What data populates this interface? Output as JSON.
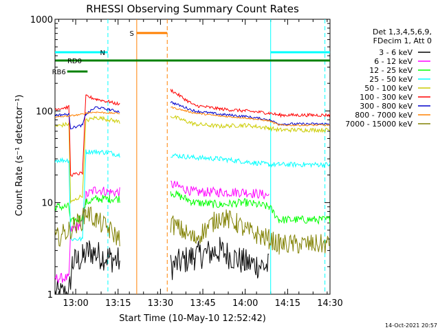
{
  "chart_data": {
    "type": "line",
    "title": "RHESSI Observing Summary Count Rates",
    "xlabel": "Start Time (10-May-10 12:52:42)",
    "ylabel": "Count Rate (s⁻¹ detector⁻¹)",
    "yscale": "log",
    "xlim": [
      12.878,
      14.5
    ],
    "ylim": [
      1,
      1000
    ],
    "x_ticks": [
      {
        "value": 13.0,
        "label": "13:00"
      },
      {
        "value": 13.25,
        "label": "13:15"
      },
      {
        "value": 13.5,
        "label": "13:30"
      },
      {
        "value": 13.75,
        "label": "13:45"
      },
      {
        "value": 14.0,
        "label": "14:00"
      },
      {
        "value": 14.25,
        "label": "14:15"
      },
      {
        "value": 14.5,
        "label": "14:30"
      }
    ],
    "y_ticks": [
      {
        "value": 1,
        "label": "1"
      },
      {
        "value": 10,
        "label": "10"
      },
      {
        "value": 100,
        "label": "100"
      },
      {
        "value": 1000,
        "label": "1000"
      }
    ],
    "legend": {
      "position": "right",
      "header": [
        "Det 1,3,4,5,6,9,",
        "FDecim 1, Att 0"
      ]
    },
    "series": [
      {
        "name": "3 - 6 keV",
        "color": "#000000",
        "noise": 0.35,
        "points": [
          [
            12.878,
            1
          ],
          [
            12.96,
            1
          ],
          [
            12.98,
            2.2
          ],
          [
            13.04,
            2.5
          ],
          [
            13.08,
            3
          ],
          [
            13.13,
            2.7
          ],
          [
            13.2,
            2.5
          ],
          [
            13.26,
            2.3
          ],
          [
            13.32,
            null
          ],
          [
            13.55,
            null
          ],
          [
            13.56,
            2.0
          ],
          [
            13.7,
            2.6
          ],
          [
            13.85,
            3.0
          ],
          [
            14.0,
            2.2
          ],
          [
            14.14,
            2.0
          ],
          [
            14.2,
            null
          ],
          [
            14.5,
            null
          ]
        ]
      },
      {
        "name": "6 - 12 keV",
        "color": "#ff00ff",
        "noise": 0.12,
        "points": [
          [
            12.878,
            1.5
          ],
          [
            12.96,
            1.5
          ],
          [
            12.97,
            5
          ],
          [
            13.04,
            6
          ],
          [
            13.06,
            12
          ],
          [
            13.12,
            14
          ],
          [
            13.2,
            13
          ],
          [
            13.26,
            13
          ],
          [
            13.32,
            null
          ],
          [
            13.55,
            null
          ],
          [
            13.56,
            16
          ],
          [
            13.7,
            13
          ],
          [
            13.85,
            13
          ],
          [
            14.0,
            13
          ],
          [
            14.14,
            12
          ],
          [
            14.2,
            null
          ],
          [
            14.5,
            null
          ]
        ]
      },
      {
        "name": "12 - 25 keV",
        "color": "#00ff00",
        "noise": 0.1,
        "points": [
          [
            12.878,
            9
          ],
          [
            12.96,
            9
          ],
          [
            12.97,
            6
          ],
          [
            13.04,
            7
          ],
          [
            13.06,
            10
          ],
          [
            13.12,
            11
          ],
          [
            13.2,
            11
          ],
          [
            13.26,
            11
          ],
          [
            13.32,
            null
          ],
          [
            13.55,
            null
          ],
          [
            13.56,
            13
          ],
          [
            13.7,
            10
          ],
          [
            13.85,
            9.5
          ],
          [
            14.0,
            10
          ],
          [
            14.14,
            9
          ],
          [
            14.2,
            6.5
          ],
          [
            14.5,
            6.5
          ]
        ]
      },
      {
        "name": "25 - 50 keV",
        "color": "#00ffff",
        "noise": 0.06,
        "points": [
          [
            12.878,
            29
          ],
          [
            12.96,
            29
          ],
          [
            12.97,
            4
          ],
          [
            13.04,
            4
          ],
          [
            13.06,
            36
          ],
          [
            13.12,
            36
          ],
          [
            13.2,
            35
          ],
          [
            13.26,
            33
          ],
          [
            13.32,
            null
          ],
          [
            13.55,
            null
          ],
          [
            13.56,
            33
          ],
          [
            13.7,
            31
          ],
          [
            13.85,
            30
          ],
          [
            14.0,
            28
          ],
          [
            14.14,
            26
          ],
          [
            14.2,
            26
          ],
          [
            14.5,
            26
          ]
        ]
      },
      {
        "name": "50 - 100 keV",
        "color": "#cccc00",
        "noise": 0.05,
        "points": [
          [
            12.878,
            68
          ],
          [
            12.96,
            72
          ],
          [
            12.97,
            10
          ],
          [
            13.04,
            12
          ],
          [
            13.06,
            78
          ],
          [
            13.12,
            85
          ],
          [
            13.2,
            80
          ],
          [
            13.26,
            76
          ],
          [
            13.32,
            null
          ],
          [
            13.55,
            null
          ],
          [
            13.56,
            88
          ],
          [
            13.7,
            72
          ],
          [
            13.85,
            68
          ],
          [
            14.0,
            70
          ],
          [
            14.14,
            65
          ],
          [
            14.2,
            62
          ],
          [
            14.5,
            62
          ]
        ]
      },
      {
        "name": "100 - 300 keV",
        "color": "#ff0000",
        "noise": 0.04,
        "points": [
          [
            12.878,
            105
          ],
          [
            12.96,
            110
          ],
          [
            12.97,
            20
          ],
          [
            13.04,
            21
          ],
          [
            13.06,
            145
          ],
          [
            13.12,
            135
          ],
          [
            13.2,
            125
          ],
          [
            13.26,
            118
          ],
          [
            13.32,
            null
          ],
          [
            13.55,
            null
          ],
          [
            13.56,
            170
          ],
          [
            13.7,
            115
          ],
          [
            13.85,
            105
          ],
          [
            14.0,
            100
          ],
          [
            14.14,
            95
          ],
          [
            14.2,
            90
          ],
          [
            14.5,
            90
          ]
        ]
      },
      {
        "name": "300 - 800 keV",
        "color": "#0000cc",
        "noise": 0.03,
        "points": [
          [
            12.878,
            90
          ],
          [
            12.96,
            92
          ],
          [
            12.97,
            65
          ],
          [
            13.04,
            70
          ],
          [
            13.06,
            92
          ],
          [
            13.12,
            110
          ],
          [
            13.2,
            103
          ],
          [
            13.26,
            98
          ],
          [
            13.32,
            null
          ],
          [
            13.55,
            null
          ],
          [
            13.56,
            125
          ],
          [
            13.7,
            100
          ],
          [
            13.85,
            92
          ],
          [
            14.0,
            87
          ],
          [
            14.14,
            80
          ],
          [
            14.2,
            72
          ],
          [
            14.5,
            72
          ]
        ]
      },
      {
        "name": "800 - 7000 keV",
        "color": "#ff8000",
        "noise": 0.02,
        "points": [
          [
            12.878,
            85
          ],
          [
            12.96,
            88
          ],
          [
            13.04,
            92
          ],
          [
            13.06,
            95
          ],
          [
            13.12,
            97
          ],
          [
            13.2,
            95
          ],
          [
            13.26,
            94
          ],
          [
            13.32,
            null
          ],
          [
            13.55,
            null
          ],
          [
            13.56,
            110
          ],
          [
            13.7,
            95
          ],
          [
            13.85,
            88
          ],
          [
            14.0,
            84
          ],
          [
            14.14,
            78
          ],
          [
            14.2,
            70
          ],
          [
            14.5,
            70
          ]
        ]
      },
      {
        "name": "7000 - 15000 keV",
        "color": "#808000",
        "noise": 0.25,
        "points": [
          [
            12.878,
            4
          ],
          [
            12.96,
            5
          ],
          [
            13.04,
            6.5
          ],
          [
            13.06,
            8
          ],
          [
            13.12,
            6.5
          ],
          [
            13.2,
            5
          ],
          [
            13.26,
            4
          ],
          [
            13.32,
            null
          ],
          [
            13.55,
            null
          ],
          [
            13.56,
            6
          ],
          [
            13.7,
            4
          ],
          [
            13.85,
            7
          ],
          [
            13.95,
            6
          ],
          [
            14.0,
            5
          ],
          [
            14.14,
            4
          ],
          [
            14.2,
            3.5
          ],
          [
            14.5,
            3.5
          ]
        ]
      }
    ],
    "flags": [
      {
        "label": "N",
        "color": "#00ffff",
        "value": 0.88,
        "segments": [
          [
            12.878,
            13.19
          ],
          [
            14.15,
            14.5
          ]
        ]
      },
      {
        "label": "RD0",
        "color": "#008000",
        "value": 0.85,
        "segments": [
          [
            12.88,
            14.5
          ]
        ]
      },
      {
        "label": "RB6",
        "color": "#008000",
        "value": 0.81,
        "segments": [
          [
            12.95,
            13.07
          ]
        ]
      },
      {
        "label": "S",
        "color": "#ff8000",
        "value": 0.95,
        "segments": [
          [
            13.36,
            13.54
          ]
        ]
      }
    ],
    "vlines": [
      {
        "x": 13.19,
        "color": "#00ffff",
        "style": "dashed"
      },
      {
        "x": 13.36,
        "color": "#ff8000",
        "style": "solid"
      },
      {
        "x": 13.54,
        "color": "#ff8000",
        "style": "dashed"
      },
      {
        "x": 14.15,
        "color": "#00ffff",
        "style": "solid"
      },
      {
        "x": 14.47,
        "color": "#00ffff",
        "style": "dashed"
      }
    ]
  },
  "footer": {
    "date": "14-Oct-2021 20:57"
  }
}
